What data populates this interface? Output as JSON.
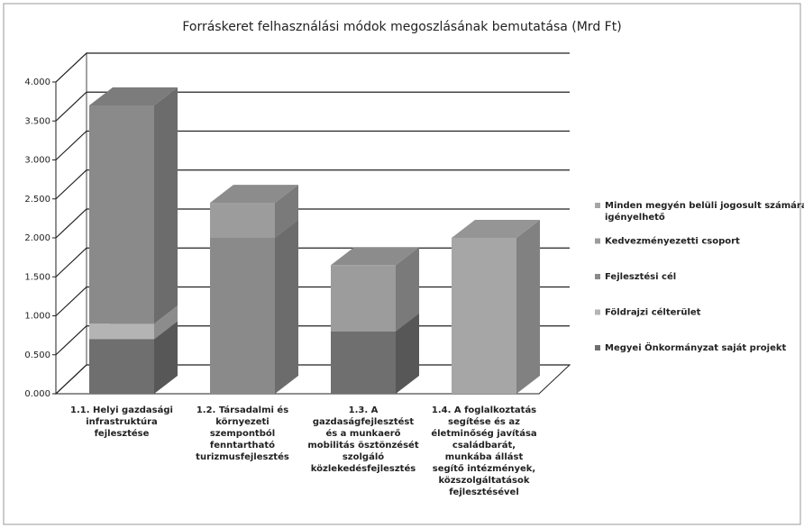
{
  "chart_data": {
    "type": "bar3d_stacked",
    "title": "Forráskeret felhasználási módok megoszlásának bemutatása (Mrd Ft)",
    "categories": [
      "1.1. Helyi gazdasági infrastruktúra fejlesztése",
      "1.2. Társadalmi és környezeti szempontból fenntartható turizmusfejlesztés",
      "1.3. A gazdaságfejlesztést és a munkaerő mobilitás ösztönzését szolgáló közlekedésfejlesztés",
      "1.4. A foglalkoztatás segítése és az életminőség javítása családbarát, munkába állást segítő intézmények, közszolgáltatások fejlesztésével"
    ],
    "series": [
      {
        "name": "Megyei Önkormányzat saját projekt",
        "color": "#6f6f6f",
        "values": [
          0.7,
          null,
          0.8,
          null
        ]
      },
      {
        "name": "Földrajzi célterület",
        "color": "#b4b4b4",
        "values": [
          0.2,
          null,
          null,
          null
        ]
      },
      {
        "name": "Fejlesztési cél",
        "color": "#8a8a8a",
        "values": [
          2.8,
          2.0,
          null,
          null
        ]
      },
      {
        "name": "Kedvezményezetti csoport",
        "color": "#9c9c9c",
        "values": [
          null,
          0.45,
          0.85,
          null
        ]
      },
      {
        "name": "Minden megyén belüli jogosult számára igényelhető",
        "color": "#a6a6a6",
        "values": [
          null,
          null,
          null,
          2.0
        ]
      }
    ],
    "ylim": [
      0,
      4
    ],
    "yticks": [
      {
        "value": 0,
        "label": "0.000"
      },
      {
        "value": 0.5,
        "label": "0.500"
      },
      {
        "value": 1,
        "label": "1.000"
      },
      {
        "value": 1.5,
        "label": "1.500"
      },
      {
        "value": 2,
        "label": "2.000"
      },
      {
        "value": 2.5,
        "label": "2.500"
      },
      {
        "value": 3,
        "label": "3.000"
      },
      {
        "value": 3.5,
        "label": "3.500"
      },
      {
        "value": 4,
        "label": "4.000"
      }
    ],
    "grid": true,
    "legend": "right"
  }
}
